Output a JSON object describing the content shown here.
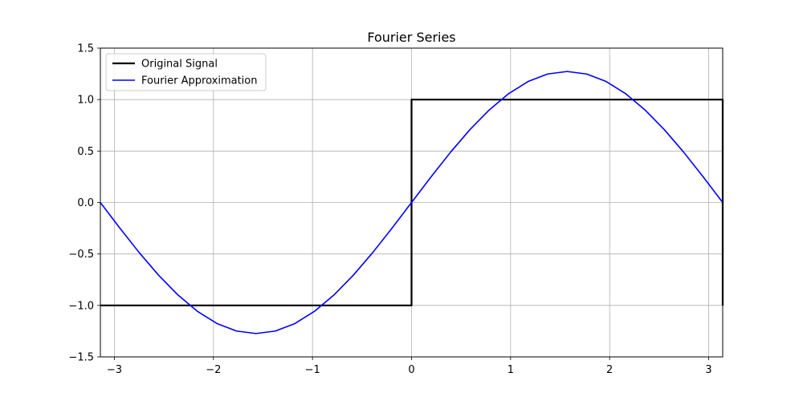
{
  "chart_data": {
    "type": "line",
    "title": "Fourier Series",
    "xlabel": "",
    "ylabel": "",
    "xlim": [
      -3.14159,
      3.14159
    ],
    "ylim": [
      -1.5,
      1.5
    ],
    "grid": true,
    "legend_position": "top-left",
    "x_ticks": [
      {
        "value": -3,
        "label": "−3"
      },
      {
        "value": -2,
        "label": "−2"
      },
      {
        "value": -1,
        "label": "−1"
      },
      {
        "value": 0,
        "label": "0"
      },
      {
        "value": 1,
        "label": "1"
      },
      {
        "value": 2,
        "label": "2"
      },
      {
        "value": 3,
        "label": "3"
      }
    ],
    "y_ticks": [
      {
        "value": -1.5,
        "label": "−1.5"
      },
      {
        "value": -1.0,
        "label": "−1.0"
      },
      {
        "value": -0.5,
        "label": "−0.5"
      },
      {
        "value": 0.0,
        "label": "0.0"
      },
      {
        "value": 0.5,
        "label": "0.5"
      },
      {
        "value": 1.0,
        "label": "1.0"
      },
      {
        "value": 1.5,
        "label": "1.5"
      }
    ],
    "series": [
      {
        "name": "Original Signal",
        "color": "#000000",
        "points": [
          [
            -3.14159,
            -1
          ],
          [
            0,
            -1
          ],
          [
            0,
            1
          ],
          [
            3.14159,
            1
          ],
          [
            3.14159,
            -1
          ]
        ]
      },
      {
        "name": "Fourier Approximation",
        "color": "#0000ff",
        "points": [
          [
            -3.1416,
            0.0
          ],
          [
            -2.9452,
            -0.2485
          ],
          [
            -2.7489,
            -0.4875
          ],
          [
            -2.5525,
            -0.7077
          ],
          [
            -2.3562,
            -0.9003
          ],
          [
            -2.1598,
            -1.0586
          ],
          [
            -1.9635,
            -1.1765
          ],
          [
            -1.7671,
            -1.2488
          ],
          [
            -1.5708,
            -1.2732
          ],
          [
            -1.3744,
            -1.2488
          ],
          [
            -1.1781,
            -1.1765
          ],
          [
            -0.9817,
            -1.0586
          ],
          [
            -0.7854,
            -0.9003
          ],
          [
            -0.589,
            -0.7077
          ],
          [
            -0.3927,
            -0.4875
          ],
          [
            -0.1963,
            -0.2485
          ],
          [
            0.0,
            0.0
          ],
          [
            0.1963,
            0.2485
          ],
          [
            0.3927,
            0.4875
          ],
          [
            0.589,
            0.7077
          ],
          [
            0.7854,
            0.9003
          ],
          [
            0.9817,
            1.0586
          ],
          [
            1.1781,
            1.1765
          ],
          [
            1.3744,
            1.2488
          ],
          [
            1.5708,
            1.2732
          ],
          [
            1.7671,
            1.2488
          ],
          [
            1.9635,
            1.1765
          ],
          [
            2.1598,
            1.0586
          ],
          [
            2.3562,
            0.9003
          ],
          [
            2.5525,
            0.7077
          ],
          [
            2.7489,
            0.4875
          ],
          [
            2.9452,
            0.2485
          ],
          [
            3.1416,
            0.0
          ]
        ]
      }
    ]
  }
}
